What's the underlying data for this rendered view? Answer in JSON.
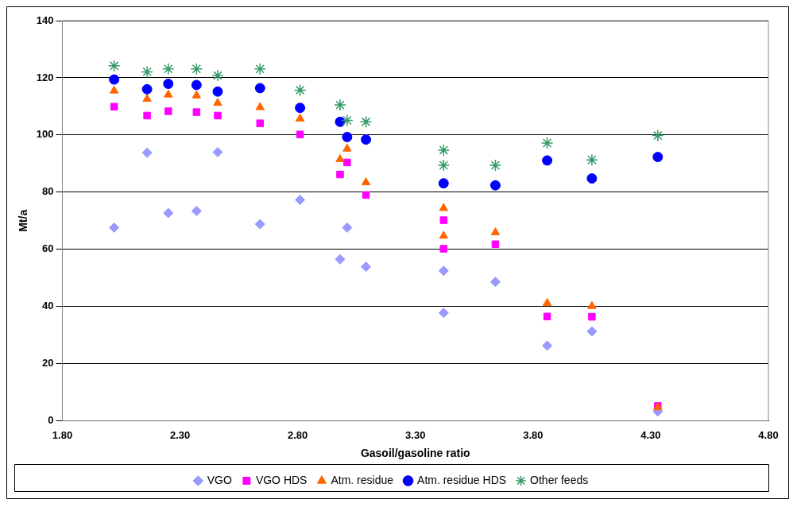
{
  "chart_data": {
    "type": "scatter",
    "xlabel": "Gasoil/gasoline ratio",
    "ylabel": "Mt/a",
    "xlim": [
      1.8,
      4.8
    ],
    "ylim": [
      0,
      140
    ],
    "xticks": [
      {
        "value": 1.8,
        "label": "1.80"
      },
      {
        "value": 2.3,
        "label": "2.30"
      },
      {
        "value": 2.8,
        "label": "2.80"
      },
      {
        "value": 3.3,
        "label": "3.30"
      },
      {
        "value": 3.8,
        "label": "3.80"
      },
      {
        "value": 4.3,
        "label": "4.30"
      },
      {
        "value": 4.8,
        "label": "4.80"
      }
    ],
    "yticks": [
      0,
      20,
      40,
      60,
      80,
      100,
      120,
      140
    ],
    "grid": "y",
    "legend": "bottom",
    "series": [
      {
        "name": "VGO",
        "color": "#9999ff",
        "marker": "diamond",
        "x": [
          2.02,
          2.16,
          2.25,
          2.37,
          2.46,
          2.64,
          2.81,
          2.98,
          3.01,
          3.09,
          3.42,
          3.42,
          3.64,
          3.86,
          4.05,
          4.33
        ],
        "values": [
          67.6,
          93.8,
          72.7,
          73.4,
          94,
          68.8,
          77.3,
          56.5,
          67.6,
          53.9,
          52.5,
          37.8,
          48.6,
          26.3,
          31.3,
          3.3
        ]
      },
      {
        "name": "VGO HDS",
        "color": "#ff00ff",
        "marker": "square",
        "x": [
          2.02,
          2.16,
          2.25,
          2.37,
          2.46,
          2.64,
          2.81,
          2.98,
          3.01,
          3.09,
          3.42,
          3.42,
          3.64,
          3.86,
          4.05,
          4.33
        ],
        "values": [
          109.9,
          106.8,
          108.3,
          108,
          106.8,
          104.1,
          100.2,
          86.2,
          90.4,
          79,
          70.2,
          60.2,
          61.8,
          36.5,
          36.4,
          5.2
        ]
      },
      {
        "name": "Atm. residue",
        "color": "#ff6600",
        "marker": "triangle",
        "x": [
          2.02,
          2.16,
          2.25,
          2.37,
          2.46,
          2.64,
          2.81,
          2.98,
          3.01,
          3.09,
          3.42,
          3.42,
          3.64,
          3.86,
          4.05,
          4.33
        ],
        "values": [
          115.5,
          112.6,
          114.1,
          113.8,
          111.2,
          109.7,
          105.7,
          91.5,
          95.2,
          83.4,
          74.4,
          64.7,
          65.9,
          41.2,
          40.1,
          4.7
        ]
      },
      {
        "name": "Atm. residue HDS",
        "color": "#0000ff",
        "marker": "circle",
        "x": [
          2.02,
          2.16,
          2.25,
          2.37,
          2.46,
          2.64,
          2.81,
          2.98,
          3.01,
          3.09,
          3.42,
          3.64,
          3.86,
          4.05,
          4.33
        ],
        "values": [
          119.4,
          116,
          117.9,
          117.5,
          115.2,
          116.4,
          109.5,
          104.6,
          99.3,
          98.4,
          83.1,
          82.4,
          91.1,
          84.8,
          92.3
        ]
      },
      {
        "name": "Other feeds",
        "color": "#339966",
        "marker": "cross",
        "x": [
          2.02,
          2.16,
          2.25,
          2.37,
          2.46,
          2.64,
          2.81,
          2.98,
          3.01,
          3.09,
          3.42,
          3.42,
          3.64,
          3.86,
          4.05,
          4.33
        ],
        "values": [
          124.2,
          122.1,
          123.1,
          123.1,
          120.8,
          123.1,
          115.7,
          110.5,
          105.1,
          104.6,
          94.7,
          89.4,
          89.4,
          97.2,
          91.3,
          99.8
        ]
      }
    ]
  }
}
